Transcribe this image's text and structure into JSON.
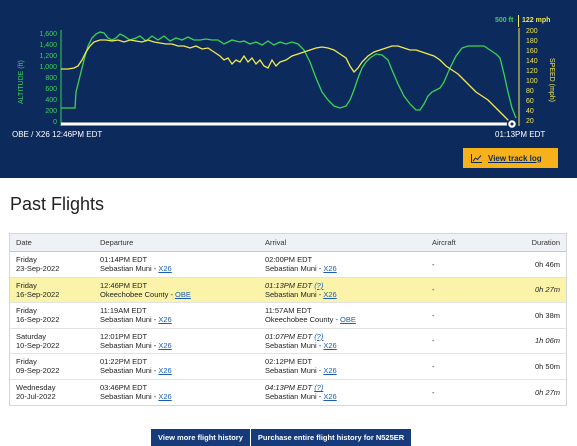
{
  "chart": {
    "altitude_legend": "500 ft",
    "speed_legend": "122 mph",
    "altitude_axis_label": "ALTITUDE (ft)",
    "speed_axis_label": "SPEED (mph)",
    "altitude_ticks": [
      "1,600",
      "1,400",
      "1,200",
      "1,000",
      "800",
      "600",
      "400",
      "200",
      "0"
    ],
    "speed_ticks": [
      "200",
      "180",
      "160",
      "140",
      "120",
      "100",
      "80",
      "60",
      "40",
      "20"
    ],
    "origin_label": "OBE / X26 12:46PM EDT",
    "end_label": "01:13PM EDT",
    "view_track_log": "View track log",
    "colors": {
      "background": "#0d2a5c",
      "altitude": "#39d353",
      "speed": "#f2e94e",
      "button": "#f7b21b"
    }
  },
  "section_title": "Past Flights",
  "table": {
    "headers": {
      "date": "Date",
      "departure": "Departure",
      "arrival": "Arrival",
      "aircraft": "Aircraft",
      "duration": "Duration"
    },
    "rows": [
      {
        "day": "Friday",
        "date": "23-Sep-2022",
        "dep_time": "01:14PM EDT",
        "dep_name": "Sebastian Muni - ",
        "dep_code": "X26",
        "arr_time": "02:00PM EDT",
        "arr_unc": "",
        "arr_name": "Sebastian Muni - ",
        "arr_code": "X26",
        "aircraft": "-",
        "duration": "0h 46m",
        "highlight": false,
        "estimated": false
      },
      {
        "day": "Friday",
        "date": "16-Sep-2022",
        "dep_time": "12:46PM EDT",
        "dep_name": "Okeechobee County - ",
        "dep_code": "OBE",
        "arr_time": "01:13PM EDT ",
        "arr_unc": "(?)",
        "arr_name": "Sebastian Muni - ",
        "arr_code": "X26",
        "aircraft": "-",
        "duration": "0h 27m",
        "highlight": true,
        "estimated": true
      },
      {
        "day": "Friday",
        "date": "16-Sep-2022",
        "dep_time": "11:19AM EDT",
        "dep_name": "Sebastian Muni - ",
        "dep_code": "X26",
        "arr_time": "11:57AM EDT",
        "arr_unc": "",
        "arr_name": "Okeechobee County - ",
        "arr_code": "OBE",
        "aircraft": "-",
        "duration": "0h 38m",
        "highlight": false,
        "estimated": false
      },
      {
        "day": "Saturday",
        "date": "10-Sep-2022",
        "dep_time": "12:01PM EDT",
        "dep_name": "Sebastian Muni - ",
        "dep_code": "X26",
        "arr_time": "01:07PM EDT ",
        "arr_unc": "(?)",
        "arr_name": "Sebastian Muni - ",
        "arr_code": "X26",
        "aircraft": "-",
        "duration": "1h 06m",
        "highlight": false,
        "estimated": true
      },
      {
        "day": "Friday",
        "date": "09-Sep-2022",
        "dep_time": "01:22PM EDT",
        "dep_name": "Sebastian Muni - ",
        "dep_code": "X26",
        "arr_time": "02:12PM EDT",
        "arr_unc": "",
        "arr_name": "Sebastian Muni - ",
        "arr_code": "X26",
        "aircraft": "-",
        "duration": "0h 50m",
        "highlight": false,
        "estimated": false
      },
      {
        "day": "Wednesday",
        "date": "20-Jul-2022",
        "dep_time": "03:46PM EDT",
        "dep_name": "Sebastian Muni - ",
        "dep_code": "X26",
        "arr_time": "04:13PM EDT ",
        "arr_unc": "(?)",
        "arr_name": "Sebastian Muni - ",
        "arr_code": "X26",
        "aircraft": "-",
        "duration": "0h 27m",
        "highlight": false,
        "estimated": true
      }
    ]
  },
  "buttons": {
    "view_more": "View more flight history",
    "purchase": "Purchase entire flight history for N525ER"
  }
}
